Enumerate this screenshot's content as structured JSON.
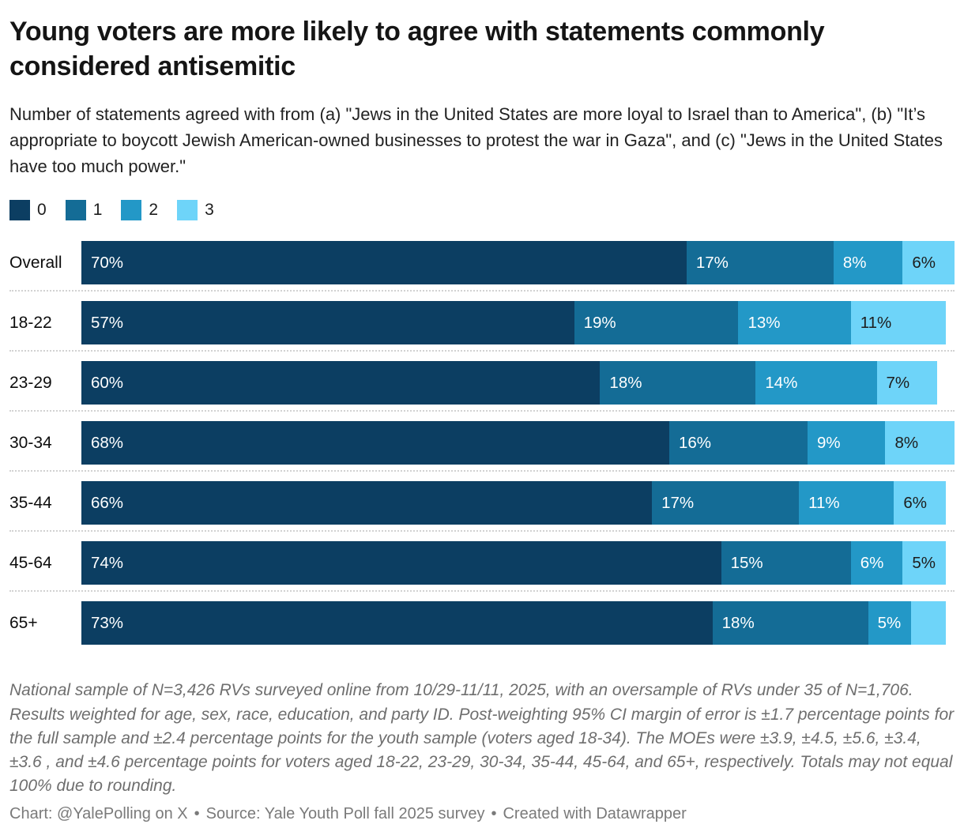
{
  "header": {
    "title": "Young voters are more likely to agree with statements commonly considered antisemitic",
    "subtitle": "Number of statements agreed with from (a) \"Jews in the United States are more loyal to Israel than to America\", (b) \"It’s appropriate to boycott Jewish American-owned businesses to protest the war in Gaza\", and (c) \"Jews in the United States have too much power.\""
  },
  "chart_data": {
    "type": "bar",
    "variant": "stacked-horizontal",
    "unit": "percent",
    "axis_max": 101,
    "grid": false,
    "legend_position": "top-left",
    "categories": [
      "Overall",
      "18-22",
      "23-29",
      "30-34",
      "35-44",
      "45-64",
      "65+"
    ],
    "series": [
      {
        "name": "0",
        "color": "#0c3e62",
        "label_color": "#ffffff",
        "values": [
          70,
          57,
          60,
          68,
          66,
          74,
          73
        ],
        "labels": [
          "70%",
          "57%",
          "60%",
          "68%",
          "66%",
          "74%",
          "73%"
        ]
      },
      {
        "name": "1",
        "color": "#146c96",
        "label_color": "#ffffff",
        "values": [
          17,
          19,
          18,
          16,
          17,
          15,
          18
        ],
        "labels": [
          "17%",
          "19%",
          "18%",
          "16%",
          "17%",
          "15%",
          "18%"
        ]
      },
      {
        "name": "2",
        "color": "#2398c7",
        "label_color": "#ffffff",
        "values": [
          8,
          13,
          14,
          9,
          11,
          6,
          5
        ],
        "labels": [
          "8%",
          "13%",
          "14%",
          "9%",
          "11%",
          "6%",
          "5%"
        ]
      },
      {
        "name": "3",
        "color": "#6ed4f9",
        "label_color": "#1d1d1d",
        "values": [
          6,
          11,
          7,
          8,
          6,
          5,
          4
        ],
        "labels": [
          "6%",
          "11%",
          "7%",
          "8%",
          "6%",
          "5%",
          ""
        ]
      }
    ]
  },
  "notes": "National sample of N=3,426 RVs surveyed online from 10/29-11/11, 2025, with an oversample of RVs under 35 of N=1,706. Results weighted for age, sex, race, education, and party ID. Post-weighting 95% CI margin of error is ±1.7 percentage points for the full sample and ±2.4 percentage points for the youth sample (voters aged 18-34). The MOEs were ±3.9, ±4.5, ±5.6, ±3.4, ±3.6 , and ±4.6 percentage points for voters aged 18-22, 23-29, 30-34, 35-44, 45-64, and 65+, respectively. Totals may not equal 100% due to rounding.",
  "footer": {
    "chart_credit": "Chart: @YalePolling on X",
    "source_credit": "Source: Yale Youth Poll fall 2025 survey",
    "created_credit": "Created with Datawrapper",
    "separator": "•"
  }
}
